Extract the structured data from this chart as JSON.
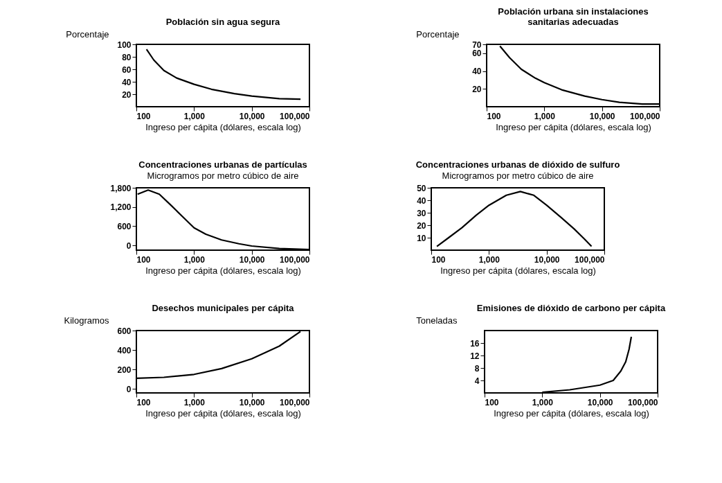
{
  "chart_data": [
    {
      "type": "line",
      "title": "Población sin agua segura",
      "ylabel": "Porcentaje",
      "xlabel": "Ingreso per cápita (dólares, escala log)",
      "log": "x",
      "xlim": [
        100,
        100000
      ],
      "xticks": [
        100,
        {
          "value": 1000,
          "label": "1,000"
        },
        {
          "value": 10000,
          "label": "10,000"
        },
        {
          "value": 100000,
          "label": "100,000"
        }
      ],
      "ylim": [
        0,
        100
      ],
      "yticks": [
        20,
        40,
        60,
        80,
        100
      ],
      "grid": false,
      "x": [
        150,
        200,
        300,
        500,
        1000,
        2000,
        5000,
        10000,
        30000,
        70000
      ],
      "series": [
        {
          "color": "#000000",
          "values": [
            92,
            75,
            58,
            46,
            36,
            28,
            21,
            17,
            13,
            12
          ]
        }
      ]
    },
    {
      "type": "line",
      "title": [
        "Población urbana sin instalaciones",
        "sanitarias adecuadas"
      ],
      "ylabel": "Porcentaje",
      "xlabel": "Ingreso per cápita (dólares, escala log)",
      "log": "x",
      "xlim": [
        100,
        100000
      ],
      "xticks": [
        100,
        {
          "value": 1000,
          "label": "1,000"
        },
        {
          "value": 10000,
          "label": "10,000"
        },
        {
          "value": 100000,
          "label": "100,000"
        }
      ],
      "ylim": [
        0,
        70
      ],
      "yticks": [
        20,
        40,
        60,
        70
      ],
      "grid": false,
      "x": [
        170,
        250,
        400,
        700,
        1000,
        2000,
        5000,
        10000,
        20000,
        50000,
        100000
      ],
      "series": [
        {
          "color": "#000000",
          "values": [
            68,
            55,
            42,
            32,
            27,
            19,
            12,
            8,
            5,
            3,
            3
          ]
        }
      ]
    },
    {
      "type": "line",
      "title": "Concentraciones urbanas de partículas",
      "subtitle": "Microgramos por metro cúbico de aire",
      "xlabel": "Ingreso per cápita (dólares, escala log)",
      "log": "x",
      "xlim": [
        100,
        100000
      ],
      "xticks": [
        100,
        {
          "value": 1000,
          "label": "1,000"
        },
        {
          "value": 10000,
          "label": "10,000"
        },
        {
          "value": 100000,
          "label": "100,000"
        }
      ],
      "ylim": [
        -150,
        1800
      ],
      "yticks": [
        0,
        600,
        {
          "value": 1200,
          "label": "1,200"
        },
        {
          "value": 1800,
          "label": "1,800"
        }
      ],
      "grid": false,
      "x": [
        105,
        160,
        250,
        400,
        630,
        1000,
        1600,
        3000,
        6000,
        10000,
        30000,
        100000
      ],
      "series": [
        {
          "color": "#000000",
          "values": [
            1600,
            1730,
            1600,
            1250,
            900,
            550,
            350,
            170,
            50,
            -20,
            -100,
            -130
          ]
        }
      ]
    },
    {
      "type": "line",
      "title": "Concentraciones urbanas de dióxido de sulfuro",
      "subtitle": "Microgramos por metro cúbico de aire",
      "xlabel": "Ingreso per cápita (dólares, escala log)",
      "log": "x",
      "xlim": [
        100,
        100000
      ],
      "xticks": [
        100,
        {
          "value": 1000,
          "label": "1,000"
        },
        {
          "value": 10000,
          "label": "10,000"
        },
        {
          "value": 100000,
          "label": "100,000"
        }
      ],
      "ylim": [
        0,
        50
      ],
      "yticks": [
        10,
        20,
        30,
        40,
        50
      ],
      "grid": false,
      "x": [
        125,
        200,
        340,
        600,
        1000,
        2000,
        3500,
        6000,
        10000,
        18000,
        30000,
        45000,
        60000
      ],
      "series": [
        {
          "color": "#000000",
          "values": [
            3,
            10,
            18,
            28,
            36,
            44,
            47,
            44,
            36,
            26,
            17,
            9,
            3
          ]
        }
      ]
    },
    {
      "type": "line",
      "title": "Desechos municipales per cápita",
      "ylabel": "Kilogramos",
      "xlabel": "Ingreso per cápita (dólares, escala log)",
      "log": "x",
      "xlim": [
        100,
        100000
      ],
      "xticks": [
        100,
        {
          "value": 1000,
          "label": "1,000"
        },
        {
          "value": 10000,
          "label": "10,000"
        },
        {
          "value": 100000,
          "label": "100,000"
        }
      ],
      "ylim": [
        -40,
        600
      ],
      "yticks": [
        0,
        200,
        400,
        600
      ],
      "grid": false,
      "x": [
        100,
        300,
        1000,
        3000,
        10000,
        30000,
        70000
      ],
      "series": [
        {
          "color": "#000000",
          "values": [
            110,
            120,
            150,
            210,
            310,
            440,
            590
          ]
        }
      ]
    },
    {
      "type": "line",
      "title": "Emisiones de dióxido de carbono per cápita",
      "ylabel": "Toneladas",
      "xlabel": "Ingreso per cápita (dólares, escala log)",
      "log": "x",
      "xlim": [
        100,
        100000
      ],
      "xticks": [
        100,
        {
          "value": 1000,
          "label": "1,000"
        },
        {
          "value": 10000,
          "label": "10,000"
        },
        {
          "value": 100000,
          "label": "100,000"
        }
      ],
      "ylim": [
        0,
        20
      ],
      "yticks": [
        4,
        8,
        12,
        16
      ],
      "grid": false,
      "x": [
        1000,
        3000,
        10000,
        17000,
        23000,
        28000,
        32000,
        35000
      ],
      "series": [
        {
          "color": "#000000",
          "values": [
            0.2,
            1,
            2.5,
            4,
            7,
            10,
            14,
            18
          ]
        }
      ]
    }
  ]
}
